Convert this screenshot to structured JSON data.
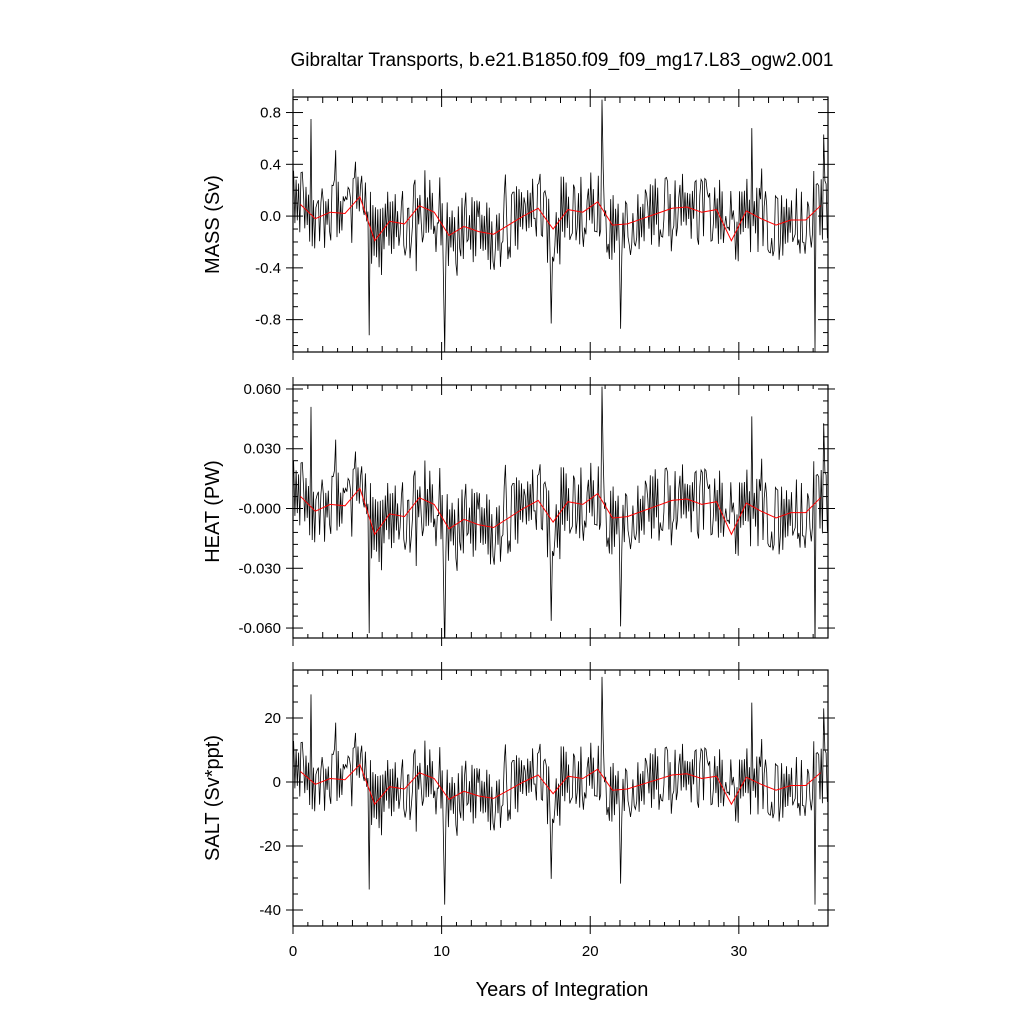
{
  "chart_data": {
    "type": "line",
    "title": "Gibraltar Transports, b.e21.B1850.f09_f09_mg17.L83_ogw2.001",
    "xlabel": "Years of Integration",
    "xlim": [
      0,
      36
    ],
    "xticks": [
      0,
      10,
      20,
      30
    ],
    "xtick_labels": [
      "0",
      "10",
      "20",
      "30"
    ],
    "grid": false,
    "legend": "none",
    "colors": {
      "monthly": "#000000",
      "annual": "#ff0000",
      "frame": "#000000"
    },
    "panels": [
      {
        "ylabel": "MASS (Sv)",
        "ylim": [
          -1.05,
          0.92
        ],
        "yticks": [
          0.8,
          0.4,
          0.0,
          -0.4,
          -0.8
        ],
        "ytick_labels": [
          "0.8",
          "0.4",
          "0.0",
          "-0.4",
          "-0.8"
        ],
        "yminor": [
          0.9,
          0.7,
          0.6,
          0.5,
          0.3,
          0.2,
          0.1,
          -0.1,
          -0.2,
          -0.3,
          -0.5,
          -0.6,
          -0.7,
          -0.9,
          -1.0
        ]
      },
      {
        "ylabel": "HEAT (PW)",
        "ylim": [
          -0.065,
          0.062
        ],
        "yticks": [
          0.06,
          0.03,
          0.0,
          -0.03,
          -0.06
        ],
        "ytick_labels": [
          "0.060",
          "0.030",
          "-0.000",
          "-0.030",
          "-0.060"
        ],
        "yminor": [
          0.054,
          0.048,
          0.042,
          0.036,
          0.024,
          0.018,
          0.012,
          0.006,
          -0.006,
          -0.012,
          -0.018,
          -0.024,
          -0.036,
          -0.042,
          -0.048,
          -0.054
        ]
      },
      {
        "ylabel": "SALT (Sv*ppt)",
        "ylim": [
          -45,
          35
        ],
        "yticks": [
          20,
          0,
          -20,
          -40
        ],
        "ytick_labels": [
          "20",
          "0",
          "-20",
          "-40"
        ],
        "yminor": [
          30,
          25,
          15,
          10,
          5,
          -5,
          -10,
          -15,
          -25,
          -30,
          -35
        ]
      }
    ],
    "annual_mean_mass_sv": {
      "x": [
        0.5,
        1.5,
        2.5,
        3.5,
        4.5,
        5.5,
        6.5,
        7.5,
        8.5,
        9.5,
        10.5,
        11.5,
        12.5,
        13.5,
        14.5,
        15.5,
        16.5,
        17.5,
        18.5,
        19.5,
        20.5,
        21.5,
        22.5,
        23.5,
        24.5,
        25.5,
        26.5,
        27.5,
        28.5,
        29.5,
        30.5,
        31.5,
        32.5,
        33.5,
        34.5,
        35.5
      ],
      "y": [
        0.09,
        -0.02,
        0.03,
        0.02,
        0.15,
        -0.19,
        -0.04,
        -0.06,
        0.08,
        0.03,
        -0.15,
        -0.08,
        -0.12,
        -0.14,
        -0.07,
        0.0,
        0.06,
        -0.1,
        0.05,
        0.03,
        0.11,
        -0.07,
        -0.06,
        -0.02,
        0.02,
        0.06,
        0.07,
        0.03,
        0.05,
        -0.19,
        0.04,
        -0.02,
        -0.07,
        -0.03,
        -0.03,
        0.08
      ]
    },
    "heat_per_sv": 0.068,
    "salt_per_sv": 36.5,
    "monthly_series": {
      "resolution": "monthly",
      "months": 432,
      "anchor_x": [
        1.2,
        5.1,
        10.2,
        17.4,
        20.8,
        22.0,
        30.9,
        35.1,
        35.7
      ],
      "anchor_mass_sv": [
        0.75,
        -0.92,
        -1.05,
        -0.83,
        0.9,
        -0.87,
        0.68,
        -1.05,
        0.63
      ],
      "typical_amplitude_sv": 0.22
    }
  }
}
